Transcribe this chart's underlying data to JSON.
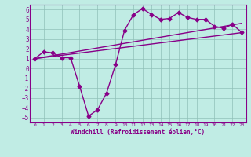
{
  "xlabel": "Windchill (Refroidissement éolien,°C)",
  "bg_color": "#c0ece4",
  "line_color": "#880088",
  "xlim": [
    -0.5,
    23.5
  ],
  "ylim": [
    -5.5,
    6.5
  ],
  "yticks": [
    -5,
    -4,
    -3,
    -2,
    -1,
    0,
    1,
    2,
    3,
    4,
    5,
    6
  ],
  "xticks": [
    0,
    1,
    2,
    3,
    4,
    5,
    6,
    7,
    8,
    9,
    10,
    11,
    12,
    13,
    14,
    15,
    16,
    17,
    18,
    19,
    20,
    21,
    22,
    23
  ],
  "line1_x": [
    0,
    1,
    2,
    3,
    4,
    5,
    6,
    7,
    8,
    9,
    10,
    11,
    12,
    13,
    14,
    15,
    16,
    17,
    18,
    19,
    20,
    21,
    22,
    23
  ],
  "line1_y": [
    1.0,
    1.7,
    1.6,
    1.1,
    1.1,
    -1.8,
    -4.85,
    -4.2,
    -2.5,
    0.4,
    3.9,
    5.5,
    6.1,
    5.5,
    5.0,
    5.1,
    5.7,
    5.2,
    5.0,
    5.0,
    4.3,
    4.1,
    4.5,
    3.7
  ],
  "line2_x": [
    0,
    23
  ],
  "line2_y": [
    1.0,
    3.65
  ],
  "line3_x": [
    0,
    23
  ],
  "line3_y": [
    1.0,
    4.6
  ],
  "marker": "D",
  "markersize": 2.5,
  "linewidth": 1.0
}
